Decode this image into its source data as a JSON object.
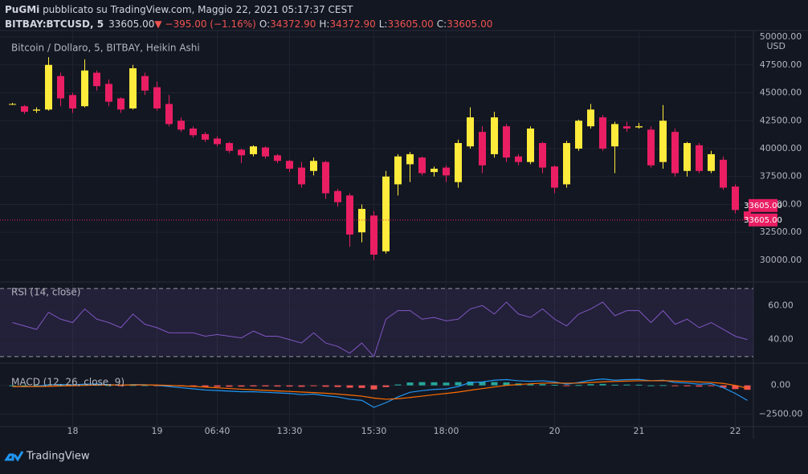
{
  "header": {
    "author": "PuGMi",
    "text": " pubblicato su TradingView.com, Maggio 22, 2021 05:17:37 CEST",
    "symbol": "BITBAY:BTCUSD, 5",
    "price": "33605.00",
    "change": "▼ −395.00 (−1.16%)",
    "o_label": "O:",
    "o": "34372.90",
    "h_label": "H:",
    "h": "34372.90",
    "l_label": "L:",
    "l": "33605.00",
    "c_label": "C:",
    "c": "33605.00"
  },
  "brand": "TradingView",
  "chart_data": [
    {
      "type": "candlestick",
      "title": "Bitcoin / Dollaro, 5, BITBAY, Heikin Ashi",
      "axis_unit": "USD",
      "categories": [
        null,
        null,
        null,
        null,
        null,
        "18",
        null,
        null,
        null,
        null,
        null,
        null,
        "19",
        null,
        null,
        null,
        null,
        "06:40",
        null,
        null,
        null,
        null,
        null,
        "13:30",
        null,
        null,
        null,
        null,
        null,
        null,
        "15:30",
        null,
        null,
        null,
        null,
        null,
        "18:00",
        null,
        null,
        null,
        null,
        null,
        null,
        null,
        null,
        "20",
        null,
        null,
        null,
        null,
        null,
        null,
        "21",
        null,
        null,
        null,
        null,
        null,
        null,
        null,
        "22",
        null
      ],
      "open": [
        44000,
        43800,
        43400,
        43500,
        46500,
        44800,
        43800,
        46800,
        45800,
        44500,
        43600,
        46500,
        45500,
        44000,
        42500,
        41800,
        41300,
        40900,
        40500,
        39900,
        39500,
        40100,
        39400,
        38900,
        38300,
        38000,
        38800,
        36200,
        35800,
        32500,
        34000,
        30800,
        36800,
        38600,
        39200,
        37900,
        38300,
        37000,
        40200,
        41500,
        39500,
        42000,
        39300,
        38800,
        40500,
        38400,
        36800,
        40000,
        42000,
        42800,
        40200,
        42000,
        41900,
        41700,
        38800,
        41500,
        38000,
        40300,
        38000,
        39000,
        36600,
        34372.9
      ],
      "high": [
        44100,
        43900,
        43700,
        48200,
        46800,
        45000,
        48000,
        47000,
        46200,
        44600,
        47500,
        46800,
        46000,
        44800,
        42800,
        42000,
        41500,
        41100,
        40600,
        40000,
        40300,
        40200,
        39500,
        39000,
        38800,
        39200,
        38900,
        36400,
        36000,
        35000,
        34400,
        38000,
        39500,
        39700,
        39300,
        38400,
        38500,
        40800,
        43700,
        42000,
        43300,
        42200,
        39500,
        42000,
        40600,
        38500,
        40700,
        42600,
        44000,
        43000,
        42400,
        42400,
        42300,
        42000,
        43900,
        41800,
        40600,
        40500,
        39800,
        39300,
        36800,
        34372.9
      ],
      "low": [
        43900,
        43100,
        43200,
        43400,
        43800,
        43200,
        43700,
        45200,
        43800,
        43200,
        43500,
        44800,
        43400,
        42000,
        41500,
        41000,
        40600,
        40200,
        39600,
        38700,
        39300,
        39100,
        38700,
        37900,
        36500,
        37600,
        35500,
        34800,
        31200,
        31600,
        30000,
        30600,
        35800,
        37000,
        37600,
        37500,
        37000,
        36500,
        40000,
        37800,
        39200,
        38800,
        38500,
        38600,
        37800,
        36000,
        36500,
        39800,
        41800,
        39800,
        37800,
        41500,
        41800,
        38300,
        38200,
        37500,
        37500,
        37800,
        37800,
        36300,
        34200,
        33605
      ],
      "close": [
        44000,
        43300,
        43500,
        47500,
        44500,
        43600,
        47000,
        45600,
        44200,
        43500,
        47200,
        45200,
        43600,
        42200,
        41700,
        41200,
        40800,
        40400,
        39800,
        39400,
        40200,
        39300,
        38900,
        38200,
        36800,
        38900,
        36000,
        35200,
        32300,
        34600,
        30500,
        37500,
        39300,
        39500,
        37800,
        38200,
        37600,
        40500,
        42800,
        38500,
        42800,
        39200,
        38800,
        41800,
        38300,
        36500,
        40500,
        42500,
        43500,
        40000,
        42200,
        41800,
        42000,
        38500,
        42500,
        37800,
        40500,
        38000,
        39500,
        36500,
        34500,
        33605
      ],
      "up_color": "#ffeb3b",
      "down_color": "#e91e63",
      "ylim": [
        28050,
        50580
      ],
      "yticks": [
        {
          "value": 30000,
          "label": "30000.00"
        },
        {
          "value": 32500,
          "label": "32500.00"
        },
        {
          "value": 35000,
          "label": "35000.00"
        },
        {
          "value": 37500,
          "label": "37500.00"
        },
        {
          "value": 40000,
          "label": "40000.00"
        },
        {
          "value": 42500,
          "label": "42500.00"
        },
        {
          "value": 45000,
          "label": "45000.00"
        },
        {
          "value": 47500,
          "label": "47500.00"
        },
        {
          "value": 50000,
          "label": "50000.00"
        }
      ],
      "last_price": {
        "value": 33605,
        "label": "33605.00"
      },
      "grid": true
    },
    {
      "type": "rsi",
      "title": "RSI (14, close)",
      "color": "#7e57c2",
      "values": [
        50,
        48,
        46,
        56,
        52,
        50,
        58,
        52,
        50,
        47,
        55,
        49,
        47,
        44,
        44,
        44,
        42,
        43,
        42,
        41,
        45,
        42,
        42,
        40,
        38,
        44,
        38,
        36,
        32,
        38,
        30,
        52,
        57,
        57,
        52,
        53,
        51,
        52,
        58,
        60,
        55,
        62,
        55,
        53,
        58,
        52,
        48,
        55,
        58,
        62,
        54,
        57,
        57,
        50,
        57,
        49,
        52,
        47,
        50,
        46,
        42,
        40
      ],
      "bands": [
        70,
        30
      ],
      "ylim": [
        26.67,
        73.33
      ],
      "yticks": [
        {
          "value": 40,
          "label": "40.00"
        },
        {
          "value": 60,
          "label": "60.00"
        }
      ]
    },
    {
      "type": "macd",
      "title": "MACD (12, 26, close, 9)",
      "macd_color": "#2196f3",
      "signal_color": "#ff6d00",
      "up_color": "#26a69a",
      "down_color": "#ef5350",
      "macd": [
        -100,
        -100,
        -80,
        50,
        80,
        50,
        100,
        120,
        80,
        0,
        80,
        60,
        0,
        -100,
        -200,
        -300,
        -400,
        -450,
        -500,
        -550,
        -550,
        -600,
        -650,
        -700,
        -800,
        -750,
        -900,
        -1000,
        -1200,
        -1300,
        -1900,
        -1500,
        -1000,
        -600,
        -450,
        -350,
        -300,
        -100,
        250,
        300,
        450,
        500,
        400,
        350,
        400,
        300,
        100,
        250,
        450,
        550,
        450,
        500,
        520,
        400,
        450,
        250,
        200,
        100,
        150,
        -200,
        -700,
        -1300
      ],
      "signal": [
        -100,
        -100,
        -100,
        -80,
        -50,
        -30,
        0,
        30,
        40,
        30,
        40,
        40,
        30,
        0,
        -40,
        -90,
        -150,
        -210,
        -270,
        -330,
        -380,
        -430,
        -480,
        -520,
        -580,
        -620,
        -680,
        -750,
        -840,
        -930,
        -1100,
        -1200,
        -1150,
        -1050,
        -930,
        -810,
        -700,
        -580,
        -420,
        -280,
        -140,
        0,
        80,
        140,
        190,
        210,
        190,
        200,
        250,
        310,
        340,
        370,
        400,
        400,
        410,
        380,
        340,
        300,
        260,
        170,
        0,
        -250
      ],
      "histogram": [
        0,
        0,
        10,
        60,
        60,
        40,
        50,
        40,
        20,
        -20,
        20,
        10,
        -20,
        -60,
        -90,
        -120,
        -140,
        -130,
        -120,
        -110,
        -90,
        -90,
        -100,
        -100,
        -120,
        -70,
        -120,
        -140,
        -200,
        -220,
        -350,
        -150,
        80,
        250,
        280,
        270,
        240,
        280,
        330,
        300,
        290,
        260,
        170,
        110,
        110,
        50,
        -50,
        30,
        110,
        130,
        60,
        70,
        60,
        0,
        20,
        -70,
        -80,
        -110,
        -60,
        -200,
        -320,
        -380
      ],
      "ylim": [
        -3500,
        1857
      ],
      "yticks": [
        {
          "value": -2500,
          "label": "−2500.00"
        },
        {
          "value": 0,
          "label": "0.00"
        }
      ]
    }
  ]
}
